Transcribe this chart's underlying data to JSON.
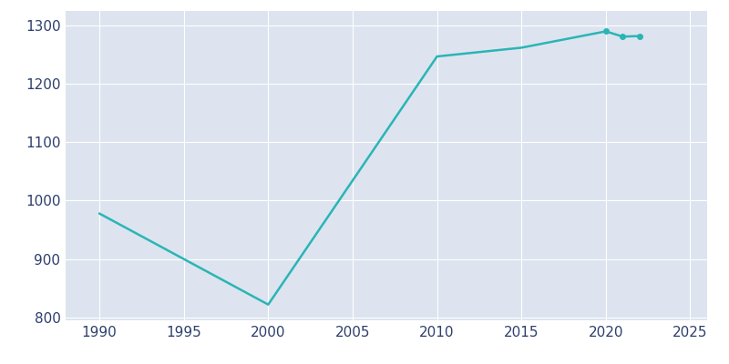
{
  "years": [
    1990,
    2000,
    2010,
    2015,
    2020,
    2021,
    2022
  ],
  "population": [
    978,
    822,
    1247,
    1262,
    1290,
    1281,
    1282
  ],
  "line_color": "#2ab5b5",
  "marker_years": [
    2020,
    2021,
    2022
  ],
  "axes_background_color": "#dde4ef",
  "figure_background_color": "#ffffff",
  "xlim": [
    1988,
    2026
  ],
  "ylim": [
    795,
    1325
  ],
  "xticks": [
    1990,
    1995,
    2000,
    2005,
    2010,
    2015,
    2020,
    2025
  ],
  "yticks": [
    800,
    900,
    1000,
    1100,
    1200,
    1300
  ],
  "tick_label_color": "#2e3f6e",
  "tick_label_size": 11,
  "grid_color": "#ffffff",
  "line_width": 1.8,
  "marker_size": 4
}
